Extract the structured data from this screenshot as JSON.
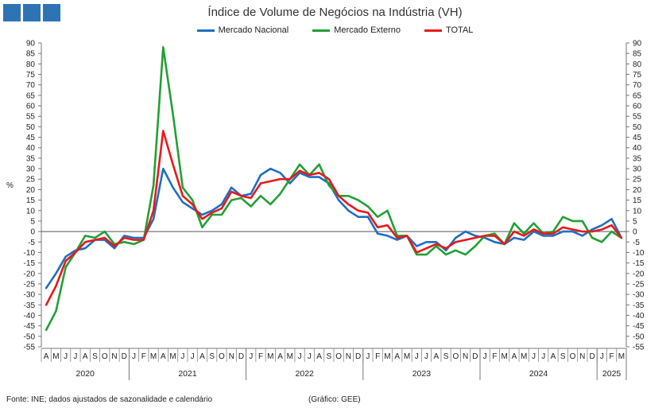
{
  "title": "Índice de Volume de Negócios na Indústria (VH)",
  "source": "Fonte: INE; dados ajustados de sazonalidade e calendário",
  "credit": "(Gráfico: GEE)",
  "colors": {
    "logo": "#2e74b5"
  },
  "chart_data": {
    "type": "line",
    "ylabel": "%",
    "ylim": [
      -55,
      90
    ],
    "yticks": [
      90,
      85,
      80,
      75,
      70,
      65,
      60,
      55,
      50,
      45,
      40,
      35,
      30,
      25,
      20,
      15,
      10,
      5,
      0,
      -5,
      -10,
      -15,
      -20,
      -25,
      -30,
      -35,
      -40,
      -45,
      -50,
      -55
    ],
    "secondary_axis": true,
    "months": [
      "A",
      "M",
      "J",
      "J",
      "A",
      "S",
      "O",
      "N",
      "D",
      "J",
      "F",
      "M",
      "A",
      "M",
      "J",
      "J",
      "A",
      "S",
      "O",
      "N",
      "D",
      "J",
      "F",
      "M",
      "A",
      "M",
      "J",
      "J",
      "A",
      "S",
      "O",
      "N",
      "D",
      "J",
      "F",
      "M",
      "A",
      "M",
      "J",
      "J",
      "A",
      "S",
      "O",
      "N",
      "D",
      "J",
      "F",
      "M",
      "A",
      "M",
      "J",
      "J",
      "A",
      "S",
      "O",
      "N",
      "D",
      "J",
      "F",
      "M"
    ],
    "years": [
      {
        "label": "2020",
        "start": 0,
        "end": 9
      },
      {
        "label": "2021",
        "start": 9,
        "end": 21
      },
      {
        "label": "2022",
        "start": 21,
        "end": 33
      },
      {
        "label": "2023",
        "start": 33,
        "end": 45
      },
      {
        "label": "2024",
        "start": 45,
        "end": 57
      },
      {
        "label": "2025",
        "start": 57,
        "end": 60
      }
    ],
    "series": [
      {
        "name": "Mercado Nacional",
        "color": "#1f6fc0",
        "values": [
          -27,
          -20,
          -12,
          -9,
          -8,
          -4,
          -4,
          -8,
          -2,
          -3,
          -3,
          6,
          30,
          21,
          14,
          11,
          8,
          10,
          13,
          21,
          17,
          18,
          27,
          30,
          28,
          23,
          28,
          26,
          26,
          23,
          15,
          10,
          7,
          7,
          -1,
          -2,
          -4,
          -2,
          -7,
          -5,
          -5,
          -9,
          -3,
          0,
          -2,
          -3,
          -5,
          -6,
          -3,
          -4,
          0,
          -2,
          -2,
          0,
          0,
          -2,
          1,
          3,
          6,
          -3
        ]
      },
      {
        "name": "Mercado Externo",
        "color": "#21a035",
        "values": [
          -47,
          -38,
          -17,
          -10,
          -2,
          -3,
          0,
          -6,
          -5,
          -6,
          -4,
          22,
          88,
          56,
          21,
          15,
          2,
          8,
          8,
          15,
          16,
          12,
          17,
          13,
          18,
          25,
          32,
          27,
          32,
          22,
          17,
          17,
          15,
          12,
          7,
          10,
          -2,
          -2,
          -11,
          -11,
          -7,
          -11,
          -9,
          -11,
          -7,
          -2,
          -1,
          -6,
          4,
          -1,
          4,
          -1,
          0,
          7,
          5,
          5,
          -3,
          -5,
          0,
          -3
        ]
      },
      {
        "name": "TOTAL",
        "color": "#e8191c",
        "values": [
          -35,
          -26,
          -14,
          -10,
          -5,
          -4,
          -3,
          -7,
          -3,
          -4,
          -4,
          10,
          48,
          32,
          17,
          13,
          6,
          9,
          11,
          19,
          17,
          16,
          23,
          24,
          25,
          25,
          29,
          27,
          28,
          25,
          17,
          13,
          10,
          9,
          2,
          3,
          -3,
          -2,
          -10,
          -8,
          -6,
          -8,
          -5,
          -4,
          -3,
          -2,
          -2,
          -6,
          0,
          -2,
          1,
          -1,
          -1,
          2,
          1,
          0,
          0,
          1,
          3,
          -3
        ]
      }
    ]
  }
}
